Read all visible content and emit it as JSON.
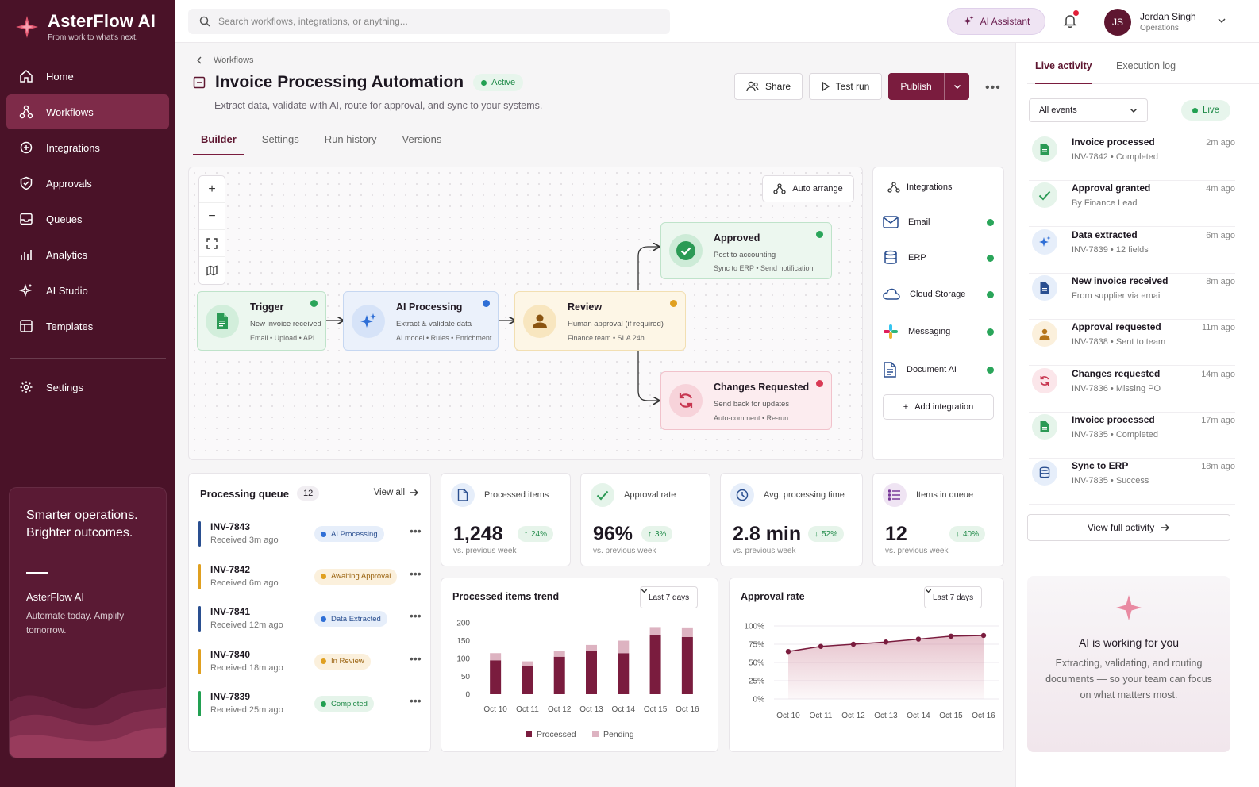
{
  "brand": {
    "name": "AsterFlow AI",
    "tagline": "From work to what's next."
  },
  "sidebar": {
    "items": [
      {
        "label": "Home",
        "icon": "home-icon"
      },
      {
        "label": "Workflows",
        "icon": "workflow-icon",
        "active": true
      },
      {
        "label": "Integrations",
        "icon": "integrations-icon"
      },
      {
        "label": "Approvals",
        "icon": "approval-icon"
      },
      {
        "label": "Queues",
        "icon": "inbox-icon"
      },
      {
        "label": "Analytics",
        "icon": "bar-chart-icon"
      },
      {
        "label": "AI Studio",
        "icon": "sparkle-icon"
      },
      {
        "label": "Templates",
        "icon": "template-icon"
      }
    ],
    "settings": "Settings",
    "promo": {
      "title": "Smarter operations. Brighter outcomes.",
      "brand": "AsterFlow AI",
      "subtitle": "Automate today. Amplify tomorrow."
    }
  },
  "topbar": {
    "search_placeholder": "Search workflows, integrations, or anything...",
    "ai_assistant": "AI Assistant",
    "user": {
      "initials": "JS",
      "name": "Jordan Singh",
      "role": "Operations"
    }
  },
  "header": {
    "breadcrumb": "Workflows",
    "title": "Invoice Processing Automation",
    "status": "Active",
    "subtitle": "Extract data, validate with AI, route for approval, and sync to your systems.",
    "share": "Share",
    "test_run": "Test run",
    "publish": "Publish"
  },
  "tabs": [
    "Builder",
    "Settings",
    "Run history",
    "Versions"
  ],
  "builder": {
    "auto_arrange": "Auto arrange",
    "nodes": {
      "trigger": {
        "title": "Trigger",
        "desc": "New invoice received",
        "meta": "Email • Upload • API"
      },
      "ai": {
        "title": "AI Processing",
        "desc": "Extract & validate data",
        "meta": "AI model • Rules • Enrichment"
      },
      "review": {
        "title": "Review",
        "desc": "Human approval (if required)",
        "meta": "Finance team • SLA 24h"
      },
      "approved": {
        "title": "Approved",
        "desc": "Post to accounting",
        "meta": "Sync to ERP • Send notification"
      },
      "changes": {
        "title": "Changes Requested",
        "desc": "Send back for updates",
        "meta": "Auto-comment • Re-run"
      }
    }
  },
  "integrations": {
    "title": "Integrations",
    "items": [
      "Email",
      "ERP",
      "Cloud Storage",
      "Messaging",
      "Document AI"
    ],
    "add": "Add integration"
  },
  "queue": {
    "title": "Processing queue",
    "count": "12",
    "view_all": "View all",
    "rows": [
      {
        "id": "INV-7843",
        "received": "Received 3m ago",
        "status": "AI Processing",
        "color": "#2f6fd6"
      },
      {
        "id": "INV-7842",
        "received": "Received 6m ago",
        "status": "Awaiting Approval",
        "color": "#e0a020"
      },
      {
        "id": "INV-7841",
        "received": "Received 12m ago",
        "status": "Data Extracted",
        "color": "#2f6fd6"
      },
      {
        "id": "INV-7840",
        "received": "Received 18m ago",
        "status": "In Review",
        "color": "#e0a020"
      },
      {
        "id": "INV-7839",
        "received": "Received 25m ago",
        "status": "Completed",
        "color": "#22a052"
      }
    ]
  },
  "kpis": [
    {
      "label": "Processed items",
      "value": "1,248",
      "delta": "24%",
      "dir": "up",
      "sub": "vs. previous week"
    },
    {
      "label": "Approval rate",
      "value": "96%",
      "delta": "3%",
      "dir": "up",
      "sub": "vs. previous week"
    },
    {
      "label": "Avg. processing time",
      "value": "2.8 min",
      "delta": "52%",
      "dir": "down",
      "sub": "vs. previous week"
    },
    {
      "label": "Items in queue",
      "value": "12",
      "delta": "40%",
      "dir": "down",
      "sub": "vs. previous week"
    }
  ],
  "chart_data": [
    {
      "type": "bar",
      "title": "Processed items trend",
      "range": "Last 7 days",
      "categories": [
        "Oct 10",
        "Oct 11",
        "Oct 12",
        "Oct 13",
        "Oct 14",
        "Oct 15",
        "Oct 16"
      ],
      "stacked": true,
      "series": [
        {
          "name": "Processed",
          "color": "#7a1c3e",
          "values": [
            95,
            80,
            105,
            120,
            115,
            165,
            160
          ]
        },
        {
          "name": "Pending",
          "color": "#ddb3c1",
          "values": [
            20,
            12,
            15,
            18,
            35,
            23,
            27
          ]
        }
      ],
      "ylim": [
        0,
        200
      ],
      "yticks": [
        "200",
        "150",
        "100",
        "50",
        "0"
      ]
    },
    {
      "type": "area",
      "title": "Approval rate",
      "range": "Last 7 days",
      "categories": [
        "Oct 10",
        "Oct 11",
        "Oct 12",
        "Oct 13",
        "Oct 14",
        "Oct 15",
        "Oct 16"
      ],
      "values": [
        65,
        72,
        75,
        78,
        82,
        86,
        87
      ],
      "ylim": [
        0,
        100
      ],
      "yticks": [
        "100%",
        "75%",
        "50%",
        "25%",
        "0%"
      ]
    }
  ],
  "activity": {
    "tabs": [
      "Live activity",
      "Execution log"
    ],
    "filter": "All events",
    "live": "Live",
    "items": [
      {
        "title": "Invoice processed",
        "sub": "INV-7842 • Completed",
        "time": "2m ago",
        "icon": "document-icon",
        "bg": "#e5f4ea",
        "fg": "#2b9a55"
      },
      {
        "title": "Approval granted",
        "sub": "By Finance Lead",
        "time": "4m ago",
        "icon": "check-icon",
        "bg": "#e5f4ea",
        "fg": "#2b9a55"
      },
      {
        "title": "Data extracted",
        "sub": "INV-7839 • 12 fields",
        "time": "6m ago",
        "icon": "sparkle-icon",
        "bg": "#e6eefa",
        "fg": "#2f6fd6"
      },
      {
        "title": "New invoice received",
        "sub": "From supplier via email",
        "time": "8m ago",
        "icon": "document-icon",
        "bg": "#e6eefa",
        "fg": "#2a4f90"
      },
      {
        "title": "Approval requested",
        "sub": "INV-7838 • Sent to team",
        "time": "11m ago",
        "icon": "user-icon",
        "bg": "#fbf0dc",
        "fg": "#b5751a"
      },
      {
        "title": "Changes requested",
        "sub": "INV-7836 • Missing PO",
        "time": "14m ago",
        "icon": "refresh-icon",
        "bg": "#fbe6ea",
        "fg": "#c73650"
      },
      {
        "title": "Invoice processed",
        "sub": "INV-7835 • Completed",
        "time": "17m ago",
        "icon": "document-icon",
        "bg": "#e5f4ea",
        "fg": "#2b9a55"
      },
      {
        "title": "Sync to ERP",
        "sub": "INV-7835 • Success",
        "time": "18m ago",
        "icon": "database-icon",
        "bg": "#e6eefa",
        "fg": "#2a4f90"
      }
    ],
    "view_full": "View full activity",
    "ai_working": {
      "title": "AI is working for you",
      "desc": "Extracting, validating, and routing documents — so your team can focus on what matters most."
    }
  }
}
